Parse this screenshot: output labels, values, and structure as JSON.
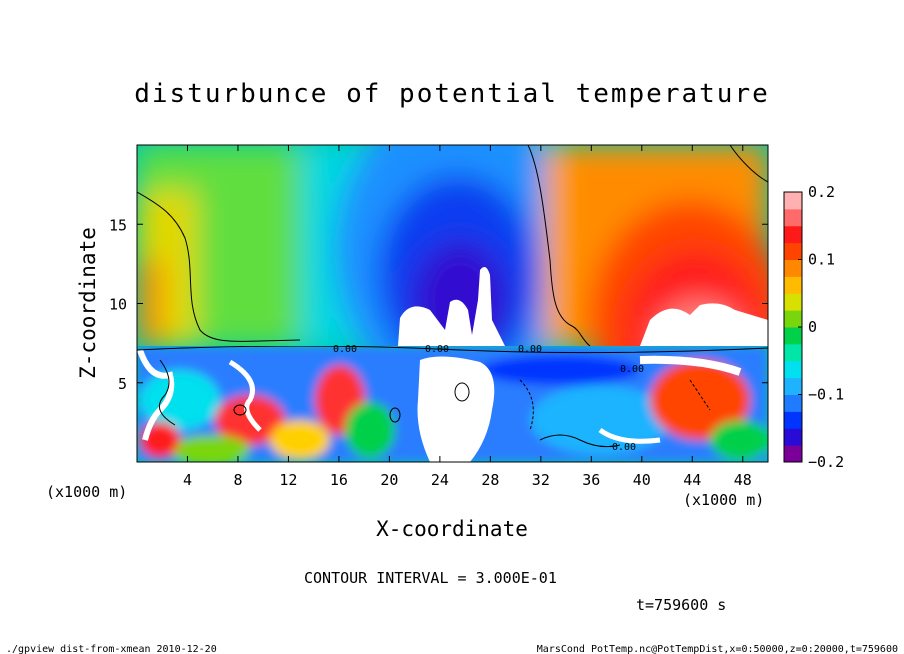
{
  "chart_data": {
    "type": "heatmap",
    "title": "disturbunce of potential temperature",
    "xlabel": "X-coordinate",
    "ylabel": "Z-coordinate",
    "x_unit": "(x1000 m)",
    "z_unit": "(x1000 m)",
    "xlim": [
      0,
      50
    ],
    "ylim": [
      0,
      20
    ],
    "x_ticks": [
      "4",
      "8",
      "12",
      "16",
      "20",
      "24",
      "28",
      "32",
      "36",
      "40",
      "44",
      "48"
    ],
    "x_tick_values": [
      4,
      8,
      12,
      16,
      20,
      24,
      28,
      32,
      36,
      40,
      44,
      48
    ],
    "y_ticks": [
      "5",
      "10",
      "15"
    ],
    "y_tick_values": [
      5,
      10,
      15
    ],
    "colorbar": {
      "ticks": [
        "0.2",
        "0.1",
        "0",
        "−0.1",
        "−0.2"
      ],
      "tick_values": [
        0.2,
        0.1,
        0,
        -0.1,
        -0.2
      ],
      "range": [
        -0.2,
        0.2
      ],
      "colors": [
        "#7b0099",
        "#2a0ad6",
        "#0035ff",
        "#1f7bff",
        "#1fb3ff",
        "#00e0ee",
        "#00e6a8",
        "#00d04a",
        "#7ad60c",
        "#d7e000",
        "#ffbb00",
        "#ff8800",
        "#ff4400",
        "#ff1a1a",
        "#ff6a6a",
        "#ffb0b0"
      ]
    },
    "contour_labels": [
      "0.00",
      "0.00",
      "0.00",
      "0.00",
      "0.00"
    ],
    "contour_interval_text": "CONTOUR INTERVAL = 3.000E-01",
    "time_text": "t=759600 s"
  },
  "footer": {
    "left": "./gpview_dist-from-xmean  2010-12-20",
    "right": "MarsCond_PotTemp.nc@PotTempDist,x=0:50000,z=0:20000,t=759600"
  }
}
